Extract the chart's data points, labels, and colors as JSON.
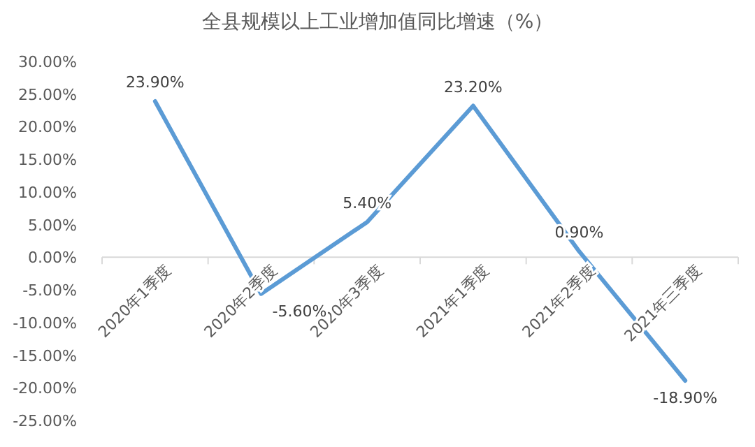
{
  "chart_data": {
    "type": "line",
    "title": "全县规模以上工业增加值同比增速（%）",
    "categories": [
      "2020年1季度",
      "2020年2季度",
      "2020年3季度",
      "2021年1季度",
      "2021年2季度",
      "2021年三季度"
    ],
    "series": [
      {
        "color": "#5b9bd5",
        "values": [
          23.9,
          -5.6,
          5.4,
          23.2,
          0.9,
          -18.9
        ],
        "value_labels": [
          "23.90%",
          "-5.60%",
          "5.40%",
          "23.20%",
          "0.90%",
          "-18.90%"
        ]
      }
    ],
    "ylim": [
      -25,
      30
    ],
    "yticks": [
      {
        "value": 30,
        "label": "30.00%"
      },
      {
        "value": 25,
        "label": "25.00%"
      },
      {
        "value": 20,
        "label": "20.00%"
      },
      {
        "value": 15,
        "label": "15.00%"
      },
      {
        "value": 10,
        "label": "10.00%"
      },
      {
        "value": 5,
        "label": "5.00%"
      },
      {
        "value": 0,
        "label": "0.00%"
      },
      {
        "value": -5,
        "label": "-5.00%"
      },
      {
        "value": -10,
        "label": "-10.00%"
      },
      {
        "value": -15,
        "label": "-15.00%"
      },
      {
        "value": -20,
        "label": "-20.00%"
      },
      {
        "value": -25,
        "label": "-25.00%"
      }
    ],
    "grid": false,
    "marker": "none",
    "line_style": "solid"
  }
}
